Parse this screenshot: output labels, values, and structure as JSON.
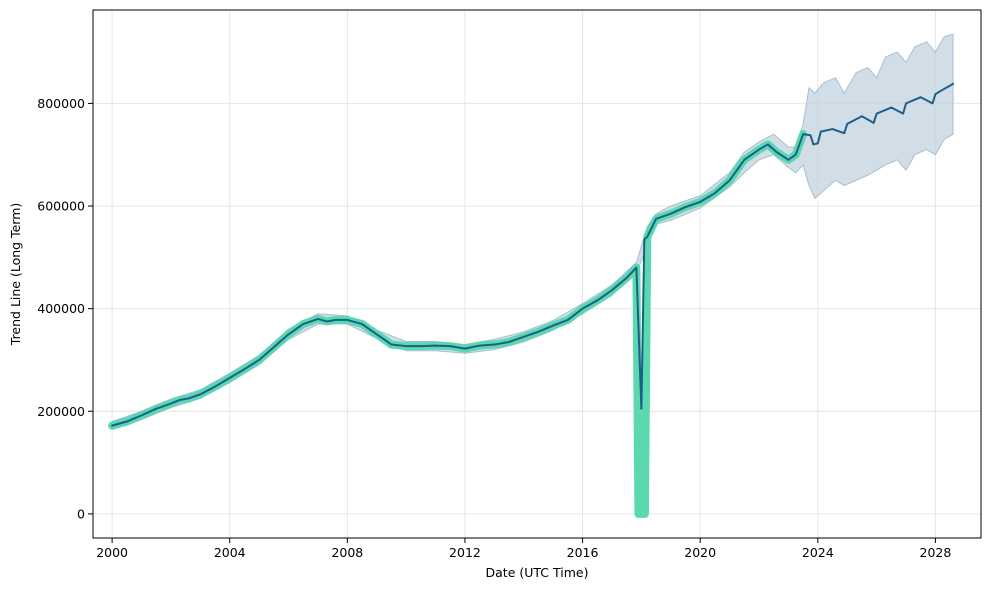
{
  "chart_data": {
    "type": "line",
    "title": "",
    "xlabel": "Date (UTC Time)",
    "ylabel": "Trend Line (Long Term)",
    "xlim": [
      1999.35,
      2029.55
    ],
    "ylim": [
      -47000,
      982000
    ],
    "x_ticks": [
      2000,
      2004,
      2008,
      2012,
      2016,
      2020,
      2024,
      2028
    ],
    "x_tick_labels": [
      "2000",
      "2004",
      "2008",
      "2012",
      "2016",
      "2020",
      "2024",
      "2028"
    ],
    "y_ticks": [
      0,
      200000,
      400000,
      600000,
      800000
    ],
    "y_tick_labels": [
      "0",
      "200000",
      "400000",
      "600000",
      "800000"
    ],
    "grid": true,
    "colors": {
      "actual": "#5ad8b0",
      "trend": "#1d5f86",
      "band": "#c2d2df",
      "grid": "#e6e6e6"
    },
    "series": [
      {
        "role": "actual",
        "x": [
          2000.0,
          2000.5,
          2001.0,
          2001.5,
          2002.0,
          2002.3,
          2002.6,
          2003.0,
          2003.5,
          2004.0,
          2004.5,
          2005.0,
          2005.5,
          2006.0,
          2006.5,
          2007.0,
          2007.3,
          2007.6,
          2008.0,
          2008.5,
          2009.0,
          2009.5,
          2010.0,
          2010.5,
          2011.0,
          2011.5,
          2012.0,
          2012.5,
          2013.0,
          2013.5,
          2014.0,
          2014.5,
          2015.0,
          2015.5,
          2016.0,
          2016.5,
          2017.0,
          2017.5,
          2017.83,
          2017.9,
          2018.0,
          2018.12,
          2018.2,
          2018.5,
          2019.0,
          2019.5,
          2020.0,
          2020.5,
          2021.0,
          2021.5,
          2022.0,
          2022.3,
          2022.6,
          2023.0,
          2023.25,
          2023.5
        ],
        "y": [
          172000,
          180000,
          192000,
          205000,
          215000,
          222000,
          225000,
          233000,
          248000,
          265000,
          282000,
          300000,
          325000,
          350000,
          370000,
          380000,
          375000,
          378000,
          378000,
          370000,
          350000,
          330000,
          327000,
          327000,
          328000,
          327000,
          322000,
          328000,
          330000,
          335000,
          345000,
          355000,
          367000,
          378000,
          400000,
          416000,
          436000,
          460000,
          480000,
          0,
          0,
          0,
          540000,
          575000,
          585000,
          598000,
          608000,
          625000,
          650000,
          690000,
          710000,
          720000,
          705000,
          690000,
          700000,
          740000
        ]
      },
      {
        "role": "trend",
        "x": [
          2000.0,
          2000.5,
          2001.0,
          2001.5,
          2002.0,
          2002.3,
          2002.6,
          2003.0,
          2003.5,
          2004.0,
          2004.5,
          2005.0,
          2005.5,
          2006.0,
          2006.5,
          2007.0,
          2007.3,
          2007.6,
          2008.0,
          2008.5,
          2009.0,
          2009.5,
          2010.0,
          2010.5,
          2011.0,
          2011.5,
          2012.0,
          2012.5,
          2013.0,
          2013.5,
          2014.0,
          2014.5,
          2015.0,
          2015.5,
          2016.0,
          2016.5,
          2017.0,
          2017.5,
          2017.83,
          2018.0,
          2018.1,
          2018.2,
          2018.5,
          2019.0,
          2019.5,
          2020.0,
          2020.5,
          2021.0,
          2021.5,
          2022.0,
          2022.3,
          2022.6,
          2023.0,
          2023.25,
          2023.5,
          2023.75,
          2023.85,
          2024.0,
          2024.1,
          2024.5,
          2024.9,
          2025.0,
          2025.5,
          2025.9,
          2026.0,
          2026.5,
          2026.9,
          2027.0,
          2027.5,
          2027.9,
          2028.0,
          2028.2,
          2028.6
        ],
        "y": [
          172000,
          180000,
          192000,
          205000,
          215000,
          222000,
          225000,
          233000,
          248000,
          265000,
          282000,
          300000,
          325000,
          350000,
          370000,
          380000,
          375000,
          378000,
          378000,
          370000,
          350000,
          330000,
          327000,
          327000,
          328000,
          327000,
          322000,
          328000,
          330000,
          335000,
          345000,
          355000,
          367000,
          378000,
          400000,
          416000,
          436000,
          460000,
          480000,
          205000,
          535000,
          540000,
          575000,
          585000,
          598000,
          608000,
          625000,
          650000,
          690000,
          710000,
          720000,
          705000,
          690000,
          700000,
          740000,
          738000,
          720000,
          722000,
          745000,
          750000,
          742000,
          760000,
          775000,
          762000,
          780000,
          792000,
          780000,
          800000,
          812000,
          800000,
          818000,
          825000,
          838000
        ]
      }
    ],
    "band": {
      "role": "uncertainty",
      "x": [
        2000.0,
        2001.0,
        2002.0,
        2003.0,
        2004.0,
        2005.0,
        2006.0,
        2007.0,
        2008.0,
        2009.0,
        2010.0,
        2011.0,
        2012.0,
        2013.0,
        2014.0,
        2015.0,
        2016.0,
        2017.0,
        2017.83,
        2018.2,
        2018.5,
        2019.0,
        2020.0,
        2021.0,
        2021.5,
        2022.0,
        2022.5,
        2023.0,
        2023.25,
        2023.5,
        2023.7,
        2023.9,
        2024.2,
        2024.6,
        2024.9,
        2025.3,
        2025.7,
        2026.0,
        2026.3,
        2026.7,
        2027.0,
        2027.3,
        2027.7,
        2028.0,
        2028.3,
        2028.6
      ],
      "upper": [
        180000,
        200000,
        224000,
        242000,
        274000,
        309000,
        360000,
        390000,
        386000,
        358000,
        336000,
        336000,
        330000,
        340000,
        355000,
        377000,
        410000,
        446000,
        490000,
        560000,
        585000,
        600000,
        620000,
        665000,
        705000,
        725000,
        740000,
        715000,
        715000,
        760000,
        830000,
        820000,
        840000,
        850000,
        820000,
        860000,
        870000,
        850000,
        890000,
        900000,
        880000,
        910000,
        920000,
        900000,
        930000,
        935000
      ]
    }
  },
  "band_lower": [
    164000,
    184000,
    207000,
    225000,
    256000,
    291000,
    340000,
    370000,
    370000,
    342000,
    318000,
    318000,
    313000,
    320000,
    335000,
    358000,
    390000,
    426000,
    470000,
    520000,
    565000,
    572000,
    596000,
    637000,
    665000,
    690000,
    700000,
    675000,
    665000,
    680000,
    640000,
    615000,
    630000,
    650000,
    640000,
    650000,
    660000,
    670000,
    680000,
    690000,
    670000,
    700000,
    710000,
    700000,
    730000,
    740000
  ]
}
